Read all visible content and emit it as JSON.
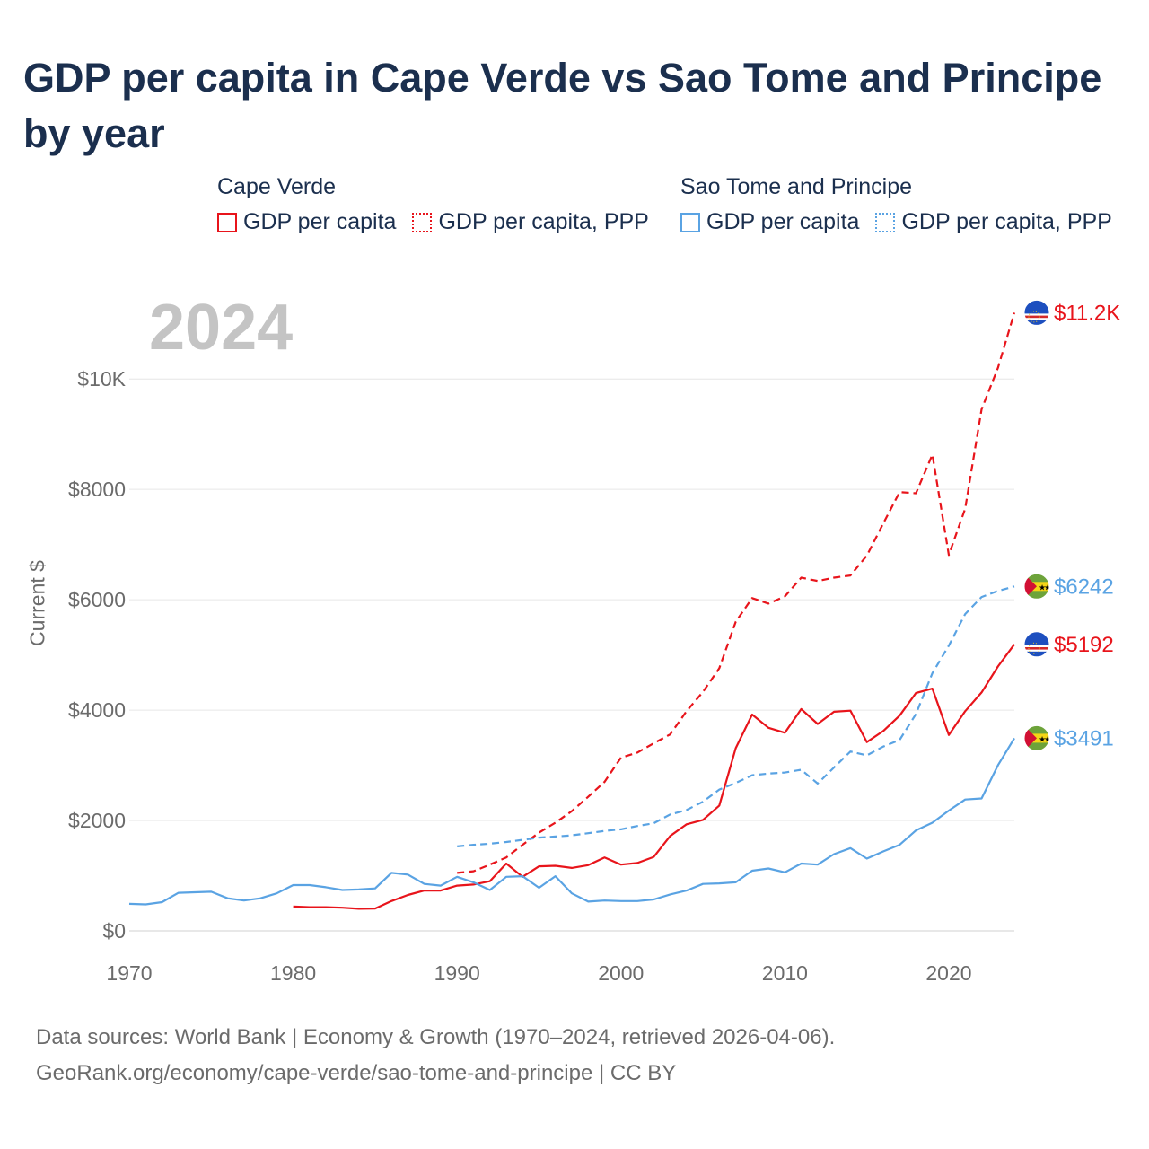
{
  "title": "GDP per capita in Cape Verde vs Sao Tome and Principe by year",
  "legend": {
    "groups": [
      {
        "name": "Cape Verde",
        "items": [
          "GDP per capita",
          "GDP per capita, PPP"
        ],
        "color": "#e8141b"
      },
      {
        "name": "Sao Tome and Principe",
        "items": [
          "GDP per capita",
          "GDP per capita, PPP"
        ],
        "color": "#5aa3e3"
      }
    ]
  },
  "year_label": "2024",
  "footer": {
    "line1": "Data sources: World Bank | Economy & Growth (1970–2024, retrieved 2026-04-06).",
    "line2": "GeoRank.org/economy/cape-verde/sao-tome-and-principe | CC BY"
  },
  "chart_data": {
    "type": "line",
    "title": "GDP per capita in Cape Verde vs Sao Tome and Principe by year",
    "xlabel": "",
    "ylabel": "Current $",
    "xlim": [
      1970,
      2024
    ],
    "ylim": [
      0,
      11500
    ],
    "x_ticks": [
      1970,
      1980,
      1990,
      2000,
      2010,
      2020
    ],
    "x_tick_labels": [
      "1970",
      "1980",
      "1990",
      "2000",
      "2010",
      "2020"
    ],
    "y_ticks": [
      0,
      2000,
      4000,
      6000,
      8000,
      10000
    ],
    "y_tick_labels": [
      "$0",
      "$2000",
      "$4000",
      "$6000",
      "$8000",
      "$10K"
    ],
    "series": [
      {
        "name": "Cape Verde GDP per capita",
        "color": "#e8141b",
        "dash": "solid",
        "flag": "cape-verde",
        "end_label": "$5192",
        "x": [
          1980,
          1981,
          1982,
          1983,
          1984,
          1985,
          1986,
          1987,
          1988,
          1989,
          1990,
          1991,
          1992,
          1993,
          1994,
          1995,
          1996,
          1997,
          1998,
          1999,
          2000,
          2001,
          2002,
          2003,
          2004,
          2005,
          2006,
          2007,
          2008,
          2009,
          2010,
          2011,
          2012,
          2013,
          2014,
          2015,
          2016,
          2017,
          2018,
          2019,
          2020,
          2021,
          2022,
          2023,
          2024
        ],
        "values": [
          440,
          430,
          430,
          420,
          400,
          405,
          540,
          650,
          730,
          730,
          820,
          840,
          900,
          1220,
          980,
          1170,
          1180,
          1140,
          1190,
          1330,
          1200,
          1230,
          1340,
          1720,
          1930,
          2010,
          2270,
          3310,
          3920,
          3680,
          3590,
          4020,
          3750,
          3970,
          3990,
          3420,
          3620,
          3900,
          4310,
          4390,
          3550,
          3980,
          4320,
          4790,
          5192
        ]
      },
      {
        "name": "Cape Verde GDP per capita, PPP",
        "color": "#e8141b",
        "dash": "dashed",
        "flag": "cape-verde",
        "end_label": "$11.2K",
        "x": [
          1990,
          1991,
          1992,
          1993,
          1994,
          1995,
          1996,
          1997,
          1998,
          1999,
          2000,
          2001,
          2002,
          2003,
          2004,
          2005,
          2006,
          2007,
          2008,
          2009,
          2010,
          2011,
          2012,
          2013,
          2014,
          2015,
          2016,
          2017,
          2018,
          2019,
          2020,
          2021,
          2022,
          2023,
          2024
        ],
        "values": [
          1050,
          1080,
          1200,
          1330,
          1560,
          1780,
          1960,
          2170,
          2430,
          2700,
          3140,
          3230,
          3400,
          3560,
          3980,
          4330,
          4760,
          5600,
          6030,
          5930,
          6060,
          6400,
          6340,
          6400,
          6440,
          6800,
          7380,
          7950,
          7930,
          8630,
          6810,
          7650,
          9450,
          10200,
          11200
        ]
      },
      {
        "name": "Sao Tome and Principe GDP per capita",
        "color": "#5aa3e3",
        "dash": "solid",
        "flag": "sao-tome",
        "end_label": "$3491",
        "x": [
          1970,
          1971,
          1972,
          1973,
          1974,
          1975,
          1976,
          1977,
          1978,
          1979,
          1980,
          1981,
          1982,
          1983,
          1984,
          1985,
          1986,
          1987,
          1988,
          1989,
          1990,
          1991,
          1992,
          1993,
          1994,
          1995,
          1996,
          1997,
          1998,
          1999,
          2000,
          2001,
          2002,
          2003,
          2004,
          2005,
          2006,
          2007,
          2008,
          2009,
          2010,
          2011,
          2012,
          2013,
          2014,
          2015,
          2016,
          2017,
          2018,
          2019,
          2020,
          2021,
          2022,
          2023,
          2024
        ],
        "values": [
          490,
          480,
          520,
          690,
          700,
          710,
          590,
          550,
          590,
          680,
          830,
          830,
          790,
          740,
          750,
          770,
          1050,
          1020,
          850,
          820,
          980,
          880,
          740,
          980,
          990,
          780,
          990,
          680,
          530,
          550,
          540,
          540,
          570,
          660,
          730,
          850,
          860,
          880,
          1090,
          1130,
          1060,
          1220,
          1200,
          1390,
          1500,
          1310,
          1440,
          1560,
          1820,
          1960,
          2180,
          2380,
          2400,
          3000,
          3491
        ]
      },
      {
        "name": "Sao Tome and Principe GDP per capita, PPP",
        "color": "#5aa3e3",
        "dash": "dashed",
        "flag": "sao-tome",
        "end_label": "$6242",
        "x": [
          1990,
          1991,
          1992,
          1993,
          1994,
          1995,
          1996,
          1997,
          1998,
          1999,
          2000,
          2001,
          2002,
          2003,
          2004,
          2005,
          2006,
          2007,
          2008,
          2009,
          2010,
          2011,
          2012,
          2013,
          2014,
          2015,
          2016,
          2017,
          2018,
          2019,
          2020,
          2021,
          2022,
          2023,
          2024
        ],
        "values": [
          1530,
          1560,
          1580,
          1610,
          1650,
          1690,
          1710,
          1730,
          1770,
          1810,
          1840,
          1900,
          1950,
          2110,
          2190,
          2340,
          2560,
          2680,
          2820,
          2850,
          2870,
          2920,
          2670,
          2960,
          3250,
          3180,
          3340,
          3460,
          3930,
          4670,
          5170,
          5740,
          6050,
          6160,
          6242
        ]
      }
    ]
  }
}
